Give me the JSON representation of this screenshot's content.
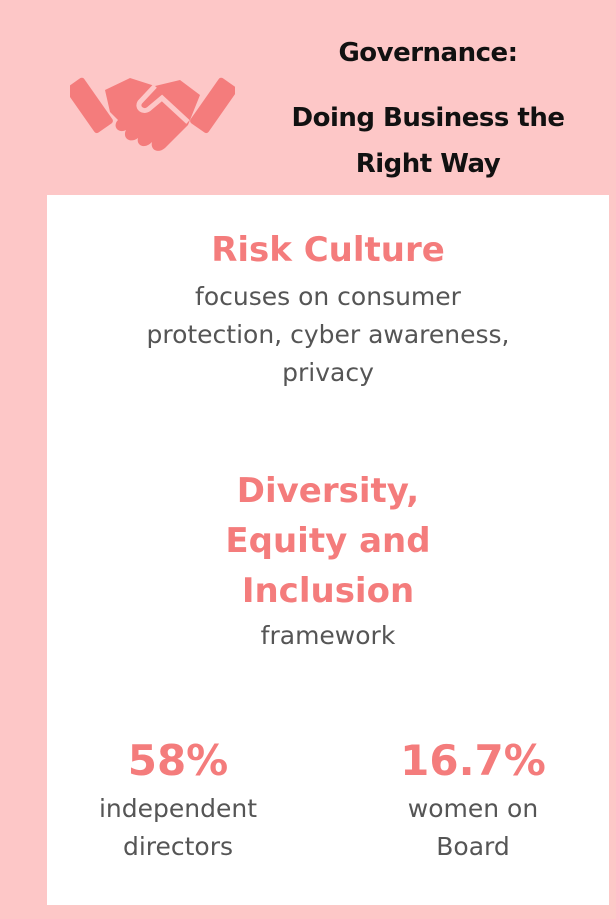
{
  "header": {
    "title": "Governance:",
    "subtitle_lines": [
      "Doing Business the",
      "Right Way"
    ]
  },
  "sections": [
    {
      "heading_lines": [
        "Risk Culture"
      ],
      "body_lines": [
        "focuses on consumer",
        "protection, cyber awareness,",
        "privacy"
      ]
    },
    {
      "heading_lines": [
        "Diversity,",
        "Equity and",
        "Inclusion"
      ],
      "body_lines": [
        "framework"
      ]
    }
  ],
  "stats": [
    {
      "value": "58%",
      "label_lines": [
        "independent",
        "directors"
      ]
    },
    {
      "value": "16.7%",
      "label_lines": [
        "women on",
        "Board"
      ]
    }
  ]
}
